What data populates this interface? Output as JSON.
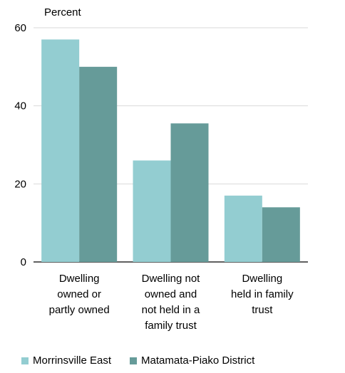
{
  "chart_data": {
    "type": "bar",
    "ylabel": "Percent",
    "ylim": [
      0,
      60
    ],
    "yticks": [
      0,
      20,
      40,
      60
    ],
    "grid": true,
    "legend_position": "bottom",
    "categories": [
      [
        "Dwelling",
        "owned or",
        "partly owned"
      ],
      [
        "Dwelling not",
        "owned and",
        "not held in a",
        "family trust"
      ],
      [
        "Dwelling",
        "held in family",
        "trust"
      ]
    ],
    "series": [
      {
        "name": "Morrinsville East",
        "color": "#93cdd1",
        "values": [
          57,
          26,
          17
        ]
      },
      {
        "name": "Matamata-Piako District",
        "color": "#669b99",
        "values": [
          50,
          35.5,
          14
        ]
      }
    ]
  }
}
